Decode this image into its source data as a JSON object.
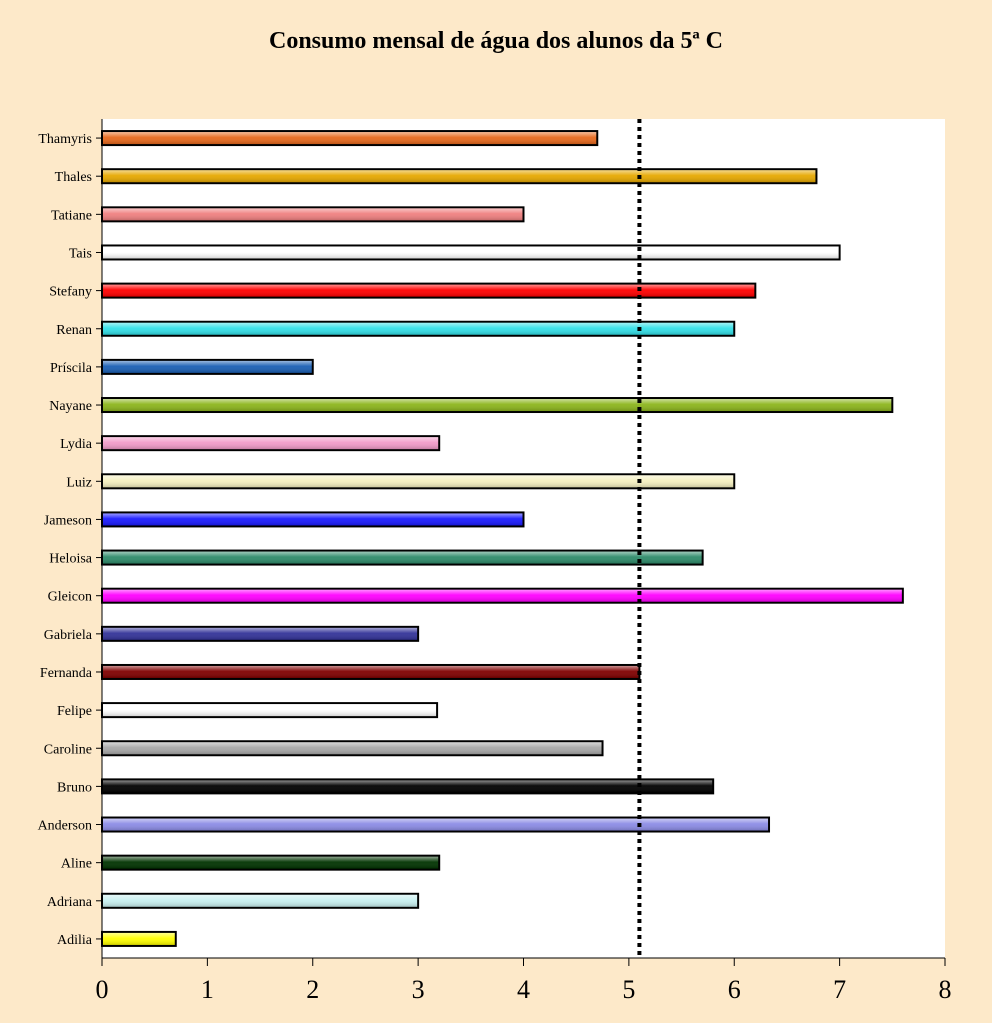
{
  "chart_data": {
    "type": "bar",
    "orientation": "horizontal",
    "title": "Consumo mensal de água dos alunos da 5ª C",
    "xlabel": "",
    "ylabel": "",
    "xlim": [
      0,
      8
    ],
    "xticks": [
      "0",
      "1",
      "2",
      "3",
      "4",
      "5",
      "6",
      "7",
      "8"
    ],
    "grid": false,
    "legend": "none",
    "reference_line": {
      "value": 5.1,
      "style": "dotted",
      "color": "#000000"
    },
    "categories": [
      "Thamyris",
      "Thales",
      "Tatiane",
      "Tais",
      "Stefany",
      "Renan",
      "Príscila",
      "Nayane",
      "Lydia",
      "Luiz",
      "Jameson",
      "Heloisa",
      "Gleicon",
      "Gabriela",
      "Fernanda",
      "Felipe",
      "Caroline",
      "Bruno",
      "Anderson",
      "Aline",
      "Adriana",
      "Adilia"
    ],
    "values": [
      4.7,
      6.78,
      4.0,
      7.0,
      6.2,
      6.0,
      2.0,
      7.5,
      3.2,
      6.0,
      4.0,
      5.7,
      7.6,
      3.0,
      5.1,
      3.18,
      4.75,
      5.8,
      6.33,
      3.2,
      3.0,
      0.7
    ],
    "colors": [
      "#e8691c",
      "#e6a800",
      "#f08080",
      "#ffffff",
      "#ff0000",
      "#33e0e8",
      "#1a5fb4",
      "#8cb51c",
      "#f29bc9",
      "#f5f0c0",
      "#1a1aff",
      "#2e8b6a",
      "#ff00ff",
      "#333399",
      "#800000",
      "#ffffff",
      "#a8a8a8",
      "#000000",
      "#8c8ce6",
      "#003300",
      "#c8f0f0",
      "#ffff00"
    ]
  }
}
